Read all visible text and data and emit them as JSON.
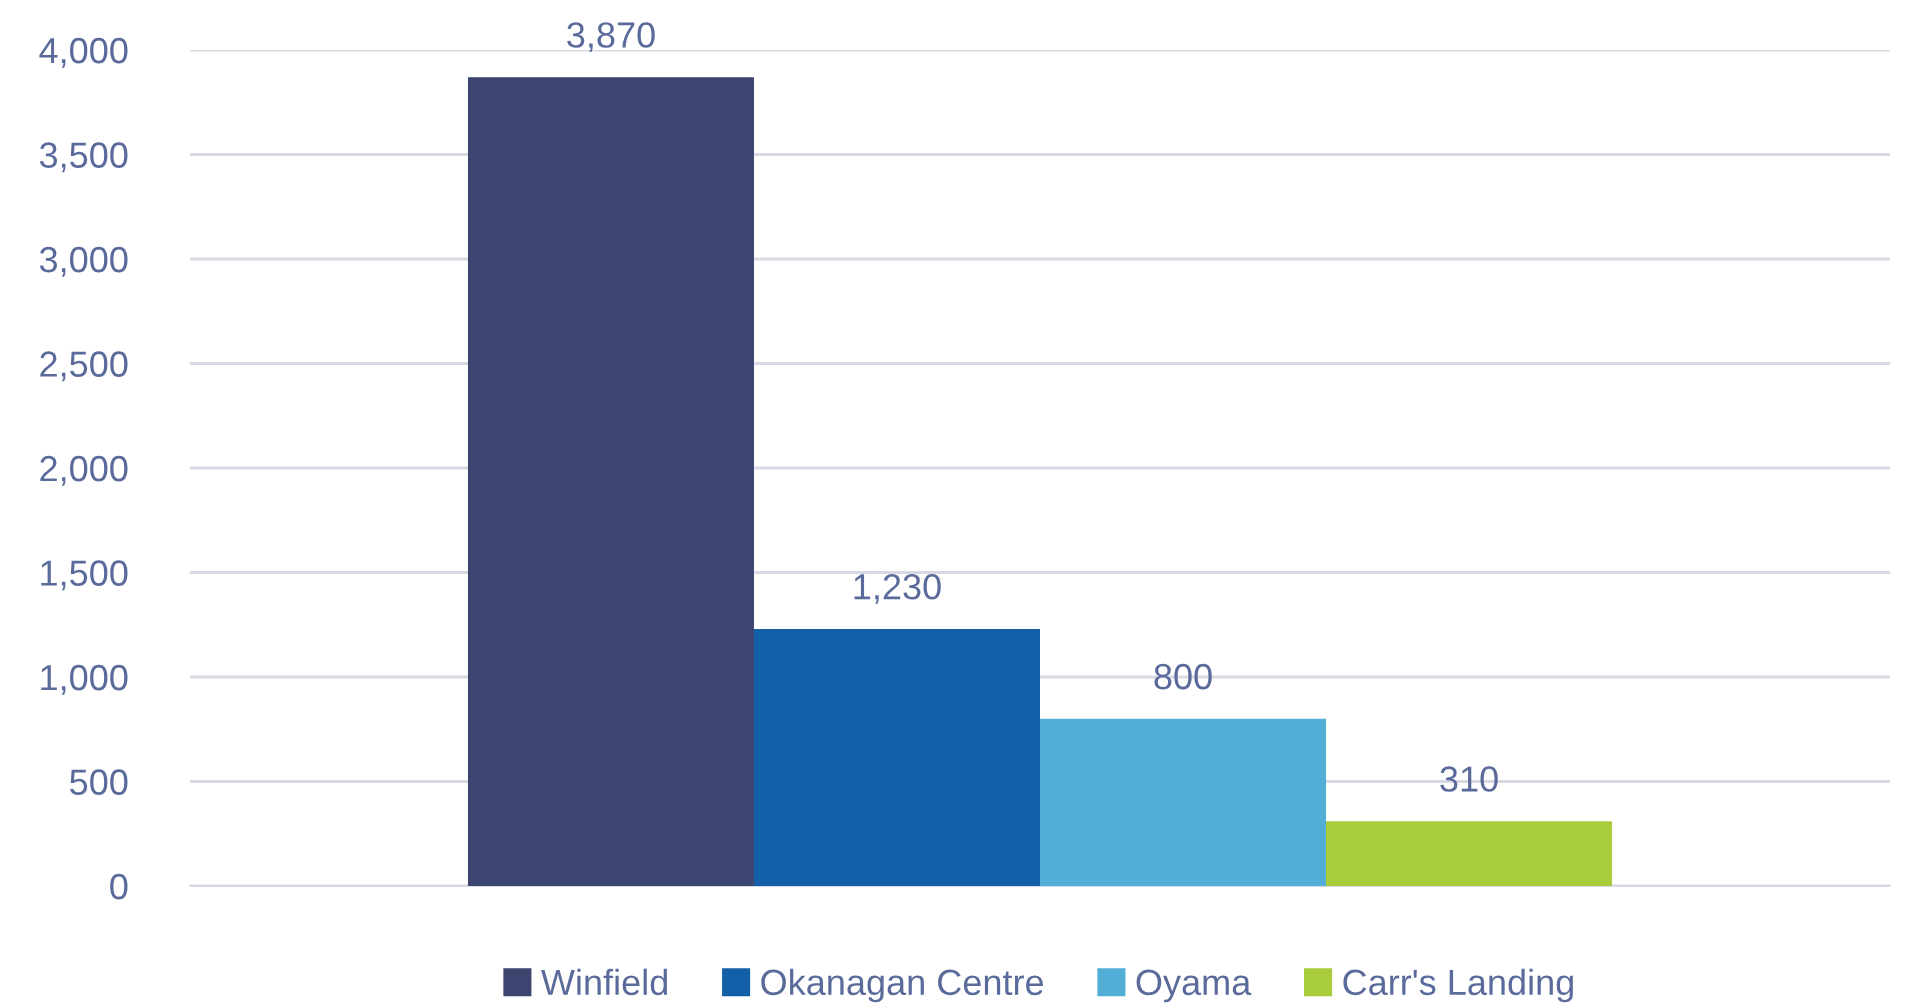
{
  "chart_data": {
    "type": "bar",
    "categories": [
      null
    ],
    "series": [
      {
        "name": "Winfield",
        "color": "#3b4570",
        "values": [
          3870
        ],
        "value_labels": [
          "3,870"
        ]
      },
      {
        "name": "Okanagan Centre",
        "color": "#1460a8",
        "values": [
          1230
        ],
        "value_labels": [
          "1,230"
        ]
      },
      {
        "name": "Oyama",
        "color": "#52aed6",
        "values": [
          800
        ],
        "value_labels": [
          "800"
        ]
      },
      {
        "name": "Carr's Landing",
        "color": "#a8cc3c",
        "values": [
          310
        ],
        "value_labels": [
          "310"
        ]
      }
    ],
    "ylim": [
      0,
      4000
    ],
    "yticks": [
      0,
      {
        "value": 500,
        "label": "500"
      },
      {
        "value": 1000,
        "label": "1,000"
      },
      {
        "value": 1500,
        "label": "1,500"
      },
      {
        "value": 2000,
        "label": "2,000"
      },
      {
        "value": 2500,
        "label": "2,500"
      },
      {
        "value": 3000,
        "label": "3,000"
      },
      {
        "value": 3500,
        "label": "3,500"
      },
      {
        "value": 4000,
        "label": "4,000"
      }
    ],
    "grid": "y",
    "legend": "bottom"
  }
}
